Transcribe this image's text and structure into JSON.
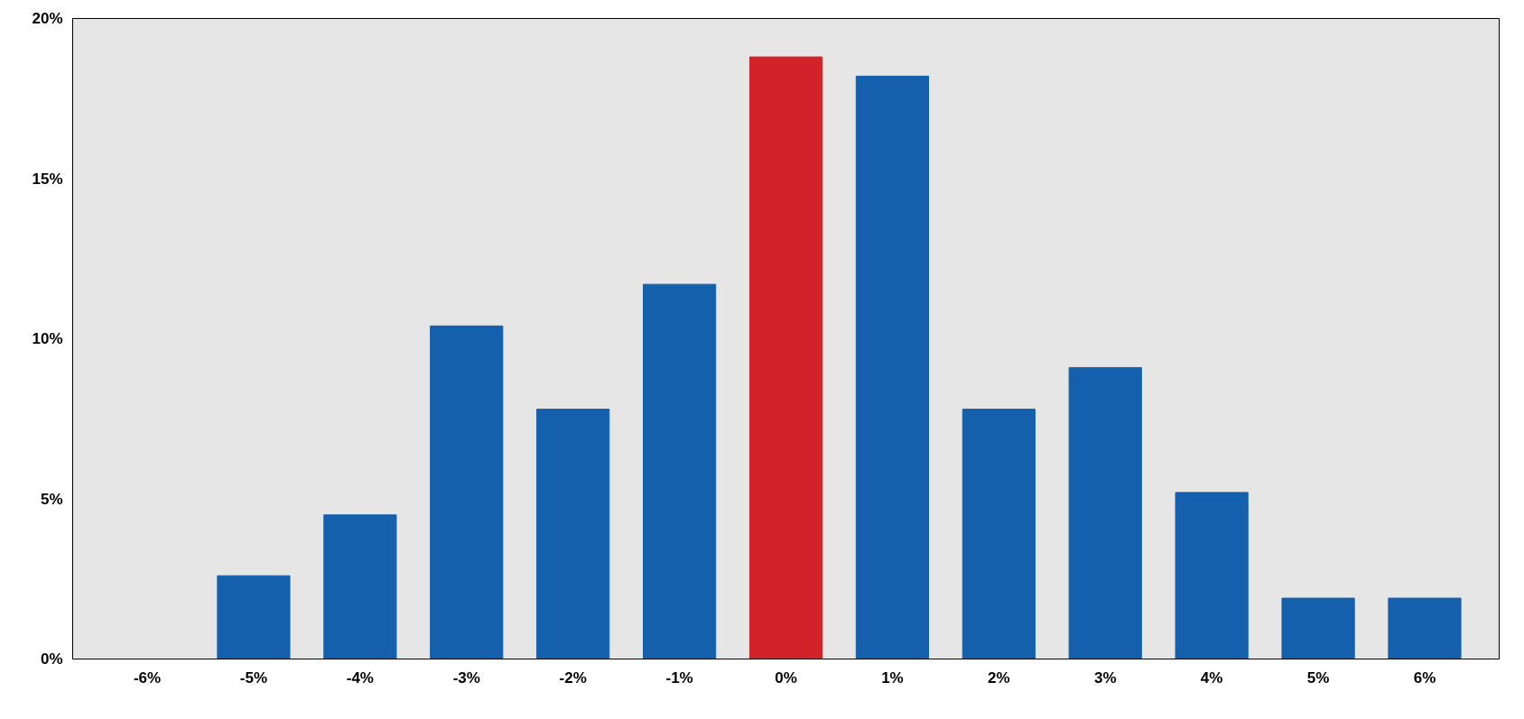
{
  "chart_data": {
    "type": "bar",
    "categories": [
      "-6%",
      "-5%",
      "-4%",
      "-3%",
      "-2%",
      "-1%",
      "0%",
      "1%",
      "2%",
      "3%",
      "4%",
      "5%",
      "6%"
    ],
    "values": [
      0,
      2.6,
      4.5,
      10.4,
      7.8,
      11.7,
      18.8,
      18.2,
      7.8,
      9.1,
      5.2,
      1.9,
      1.9
    ],
    "colors": [
      "#1560ac",
      "#1560ac",
      "#1560ac",
      "#1560ac",
      "#1560ac",
      "#1560ac",
      "#d2232a",
      "#1560ac",
      "#1560ac",
      "#1560ac",
      "#1560ac",
      "#1560ac",
      "#1560ac"
    ],
    "ylim": [
      0,
      20
    ],
    "yticks": [
      {
        "value": 0,
        "label": "0%"
      },
      {
        "value": 5,
        "label": "5%"
      },
      {
        "value": 10,
        "label": "10%"
      },
      {
        "value": 15,
        "label": "15%"
      },
      {
        "value": 20,
        "label": "20%"
      }
    ],
    "grid": false
  }
}
